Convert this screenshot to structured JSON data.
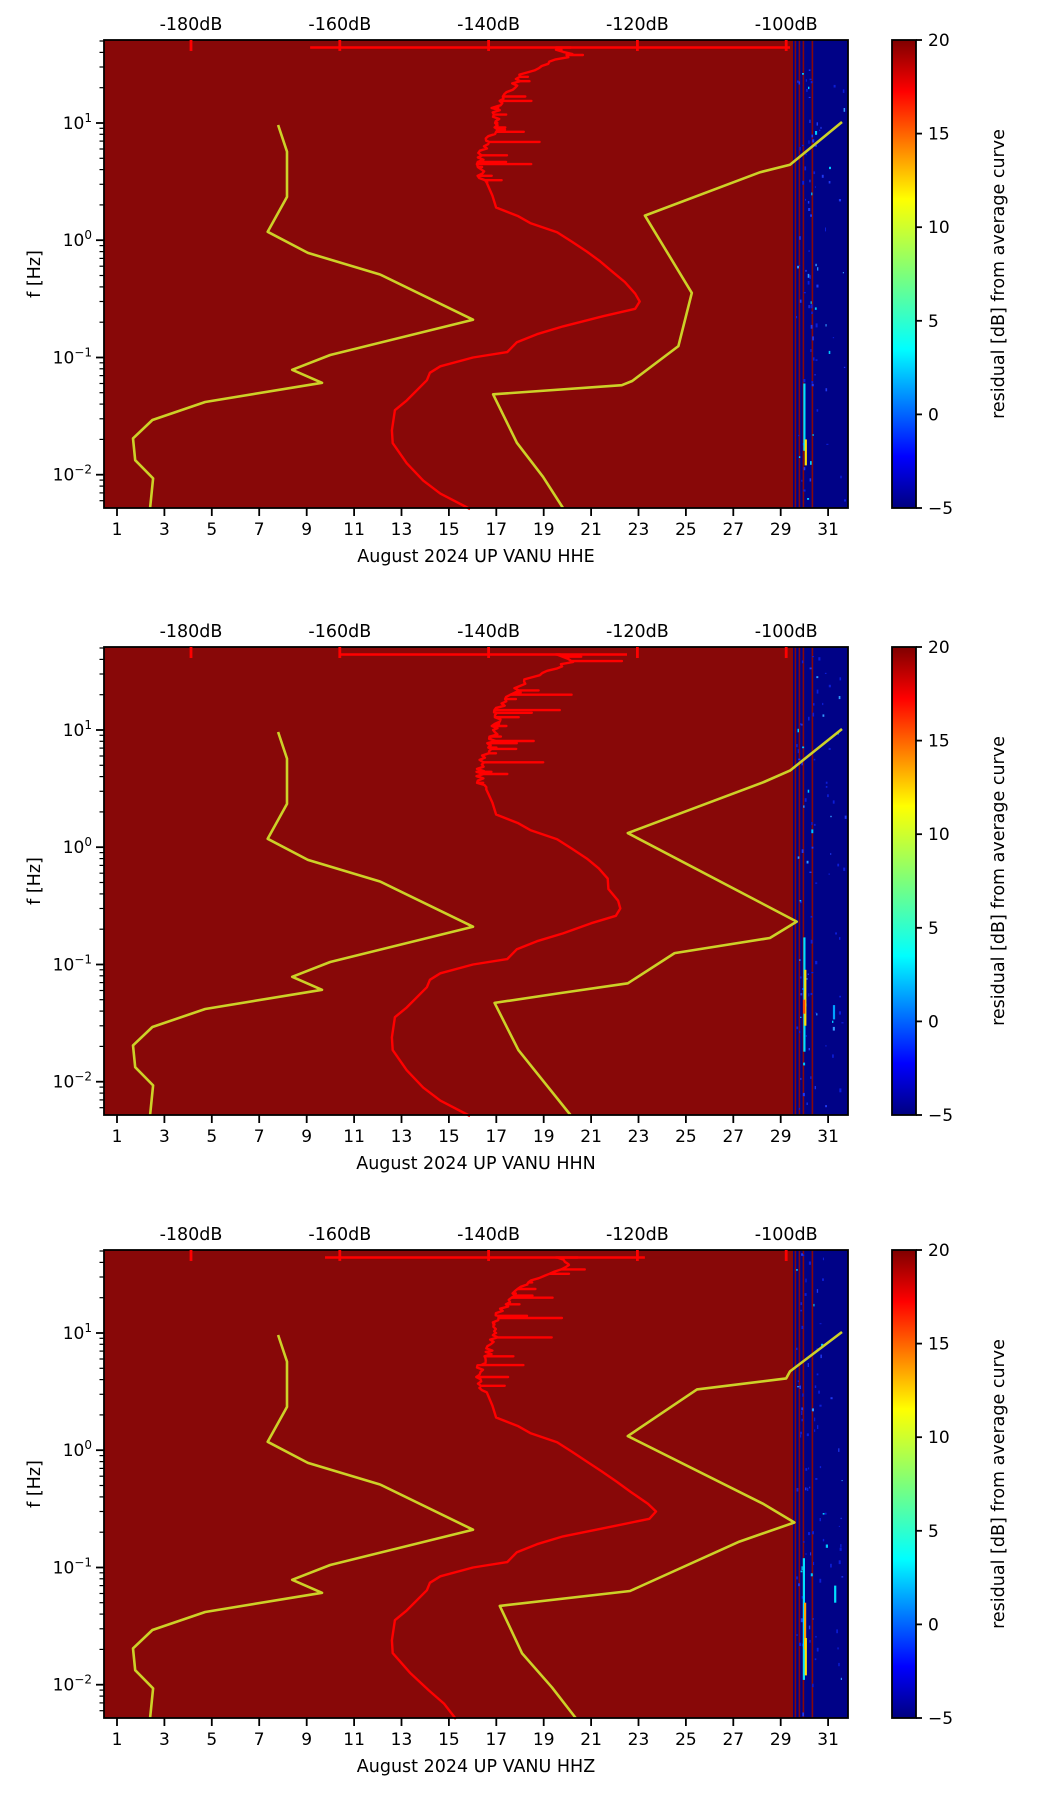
{
  "chart_data": {
    "type": "heatmap",
    "x_axis": {
      "range": [
        0.45,
        31.84
      ],
      "ticks": [
        1,
        3,
        5,
        7,
        9,
        11,
        13,
        15,
        17,
        19,
        21,
        23,
        25,
        27,
        29,
        31
      ]
    },
    "top_axis": {
      "range_db": [
        -191.7,
        -91.7
      ],
      "ticks_db": [
        -180,
        -160,
        -140,
        -120,
        -100
      ],
      "labels": [
        "-180dB",
        "-160dB",
        "-140dB",
        "-120dB",
        "-100dB"
      ],
      "color": "#ff0000"
    },
    "y_axis": {
      "label": "f [Hz]",
      "scale": "log",
      "range_hz": [
        0.0052,
        51
      ],
      "ticks": [
        {
          "f": 10,
          "exp": "1"
        },
        {
          "f": 1,
          "exp": "0"
        },
        {
          "f": 0.1,
          "exp": "−1"
        },
        {
          "f": 0.01,
          "exp": "−2"
        }
      ]
    },
    "colorbar": {
      "label": "residual [dB] from average curve",
      "range": [
        -5,
        20
      ],
      "ticks": [
        20,
        15,
        10,
        5,
        0,
        -5
      ],
      "tick_labels": [
        "20",
        "15",
        "10",
        "5",
        "0",
        "−5"
      ],
      "colormap": "jet",
      "gradient_stops": [
        {
          "pos": 0,
          "color": "#7f0000"
        },
        {
          "pos": 11,
          "color": "#ff0000"
        },
        {
          "pos": 34,
          "color": "#ffff00"
        },
        {
          "pos": 50,
          "color": "#7dff7a"
        },
        {
          "pos": 66,
          "color": "#00ffff"
        },
        {
          "pos": 89,
          "color": "#0000ff"
        },
        {
          "pos": 100,
          "color": "#00007f"
        }
      ]
    },
    "heatmap": {
      "background_value_db": 20,
      "background_color": "#880808",
      "band": {
        "start_day": 29.52,
        "value_db": -5,
        "color": "#000287",
        "red_stripe_days": [
          29.62,
          29.79,
          29.96,
          30.34
        ]
      }
    },
    "series": {
      "psd_color": "#ff0000",
      "noise_model_color": "#cdd128",
      "noise_model_low_points": [
        [
          -168.3,
          9.6
        ],
        [
          -167.1,
          5.7
        ],
        [
          -167.1,
          2.34
        ],
        [
          -169.7,
          1.18
        ],
        [
          -164.3,
          0.78
        ],
        [
          -154.6,
          0.51
        ],
        [
          -142.1,
          0.21
        ],
        [
          -161.3,
          0.105
        ],
        [
          -166.4,
          0.0785
        ],
        [
          -162.4,
          0.0608
        ],
        [
          -178.1,
          0.0417
        ],
        [
          -185.2,
          0.0293
        ],
        [
          -187.8,
          0.0204
        ],
        [
          -187.5,
          0.0133
        ],
        [
          -185.1,
          0.0093
        ],
        [
          -185.5,
          0.0052
        ]
      ]
    },
    "subplots": [
      {
        "xlabel": "August 2024 UP VANU  HHE",
        "channel": "HHE",
        "spike_seed": 7,
        "spike_max_db": 11,
        "top_streak": {
          "f": 44,
          "db": [
            -164,
            -99.5
          ]
        },
        "psd_points": [
          [
            -131,
            44
          ],
          [
            -129,
            38
          ],
          [
            -135,
            27
          ],
          [
            -137,
            20
          ],
          [
            -139,
            14
          ],
          [
            -139,
            10
          ],
          [
            -140,
            6.9
          ],
          [
            -141,
            5.3
          ],
          [
            -141.2,
            4.4
          ],
          [
            -140.8,
            3.0
          ],
          [
            -139.5,
            2.4
          ],
          [
            -139,
            1.9
          ],
          [
            -136,
            1.6
          ],
          [
            -134.4,
            1.4
          ],
          [
            -130.8,
            1.17
          ],
          [
            -128.8,
            0.97
          ],
          [
            -126.8,
            0.8
          ],
          [
            -125,
            0.66
          ],
          [
            -123.4,
            0.54
          ],
          [
            -121.7,
            0.44
          ],
          [
            -120.3,
            0.35
          ],
          [
            -119.7,
            0.3
          ],
          [
            -120.3,
            0.26
          ],
          [
            -124.6,
            0.225
          ],
          [
            -130,
            0.184
          ],
          [
            -133.5,
            0.158
          ],
          [
            -136.2,
            0.135
          ],
          [
            -137.5,
            0.111
          ],
          [
            -142.1,
            0.1
          ],
          [
            -146.5,
            0.084
          ],
          [
            -147.9,
            0.074
          ],
          [
            -148.3,
            0.064
          ],
          [
            -151,
            0.043
          ],
          [
            -152.6,
            0.0355
          ],
          [
            -153,
            0.0239
          ],
          [
            -152.9,
            0.0186
          ],
          [
            -151,
            0.0125
          ],
          [
            -148.8,
            0.0089
          ],
          [
            -146.5,
            0.0069
          ],
          [
            -142.5,
            0.0051
          ]
        ],
        "noise_model_high_points": [
          [
            -92.5,
            10.2
          ],
          [
            -99.5,
            4.4
          ],
          [
            -103.5,
            3.8
          ],
          [
            -119,
            1.62
          ],
          [
            -112.7,
            0.355
          ],
          [
            -114.5,
            0.125
          ],
          [
            -120.7,
            0.063
          ],
          [
            -122.1,
            0.058
          ],
          [
            -139.4,
            0.0485
          ],
          [
            -136.2,
            0.0187
          ],
          [
            -132.7,
            0.0096
          ],
          [
            -130,
            0.0052
          ]
        ],
        "band_streaks": [
          {
            "day": 30.0,
            "f_top": 0.06,
            "f_bot": 0.016,
            "color": "#00e0ff"
          },
          {
            "day": 30.06,
            "f_top": 0.02,
            "f_bot": 0.012,
            "color": "#ffe000"
          }
        ]
      },
      {
        "xlabel": "August 2024 UP VANU  HHN",
        "channel": "HHN",
        "spike_seed": 13,
        "spike_max_db": 14,
        "top_streak": {
          "f": 44,
          "db": [
            -160,
            -121.4
          ]
        },
        "psd_points": [
          [
            -131,
            44
          ],
          [
            -129,
            38
          ],
          [
            -135,
            27
          ],
          [
            -137,
            20
          ],
          [
            -139,
            14
          ],
          [
            -139,
            10
          ],
          [
            -140,
            6.9
          ],
          [
            -141,
            5.3
          ],
          [
            -141.2,
            4.4
          ],
          [
            -140.8,
            3.0
          ],
          [
            -139.5,
            2.4
          ],
          [
            -139,
            1.9
          ],
          [
            -136,
            1.6
          ],
          [
            -134.4,
            1.4
          ],
          [
            -130.8,
            1.17
          ],
          [
            -128.8,
            0.97
          ],
          [
            -126.8,
            0.8
          ],
          [
            -125.2,
            0.66
          ],
          [
            -124,
            0.54
          ],
          [
            -123.9,
            0.44
          ],
          [
            -122.6,
            0.35
          ],
          [
            -122.3,
            0.3
          ],
          [
            -122.9,
            0.26
          ],
          [
            -126.2,
            0.225
          ],
          [
            -130,
            0.184
          ],
          [
            -133.5,
            0.158
          ],
          [
            -136.2,
            0.135
          ],
          [
            -137.5,
            0.111
          ],
          [
            -142.1,
            0.1
          ],
          [
            -146.5,
            0.084
          ],
          [
            -147.9,
            0.074
          ],
          [
            -148.3,
            0.064
          ],
          [
            -151,
            0.043
          ],
          [
            -152.6,
            0.0355
          ],
          [
            -153,
            0.0239
          ],
          [
            -152.9,
            0.0186
          ],
          [
            -151,
            0.0125
          ],
          [
            -148.8,
            0.0089
          ],
          [
            -146.5,
            0.0069
          ],
          [
            -142.5,
            0.0051
          ]
        ],
        "noise_model_high_points": [
          [
            -92.5,
            10.2
          ],
          [
            -99.5,
            4.5
          ],
          [
            -103,
            3.6
          ],
          [
            -121.3,
            1.32
          ],
          [
            -98.6,
            0.232
          ],
          [
            -102.2,
            0.168
          ],
          [
            -115,
            0.125
          ],
          [
            -121.3,
            0.069
          ],
          [
            -130.4,
            0.057
          ],
          [
            -139.2,
            0.047
          ],
          [
            -136,
            0.0186
          ],
          [
            -132.3,
            0.0095
          ],
          [
            -129,
            0.0052
          ]
        ],
        "band_streaks": [
          {
            "day": 30.0,
            "f_top": 0.17,
            "f_bot": 0.018,
            "color": "#00e0ff"
          },
          {
            "day": 30.04,
            "f_top": 0.09,
            "f_bot": 0.03,
            "color": "#ffe000"
          },
          {
            "day": 29.99,
            "f_top": 0.05,
            "f_bot": 0.038,
            "color": "#ff4500"
          },
          {
            "day": 31.25,
            "f_top": 0.045,
            "f_bot": 0.034,
            "color": "#00a0ff"
          }
        ]
      },
      {
        "xlabel": "August 2024 UP VANU  HHZ",
        "channel": "HHZ",
        "spike_seed": 29,
        "spike_max_db": 13,
        "top_streak": {
          "f": 44,
          "db": [
            -162,
            -119
          ]
        },
        "psd_points": [
          [
            -131,
            44
          ],
          [
            -129,
            38
          ],
          [
            -135,
            27
          ],
          [
            -137,
            20
          ],
          [
            -139,
            14
          ],
          [
            -139,
            10
          ],
          [
            -140,
            6.9
          ],
          [
            -141,
            5.3
          ],
          [
            -141.2,
            4.4
          ],
          [
            -140.8,
            3.0
          ],
          [
            -139.5,
            2.4
          ],
          [
            -139,
            1.9
          ],
          [
            -136,
            1.6
          ],
          [
            -134.4,
            1.4
          ],
          [
            -130.8,
            1.17
          ],
          [
            -128.8,
            0.97
          ],
          [
            -126.8,
            0.8
          ],
          [
            -124.8,
            0.66
          ],
          [
            -122.8,
            0.54
          ],
          [
            -120.9,
            0.44
          ],
          [
            -118.6,
            0.35
          ],
          [
            -117.5,
            0.3
          ],
          [
            -118.4,
            0.26
          ],
          [
            -123.2,
            0.225
          ],
          [
            -130,
            0.184
          ],
          [
            -133.5,
            0.158
          ],
          [
            -136.2,
            0.135
          ],
          [
            -137.5,
            0.111
          ],
          [
            -142.1,
            0.1
          ],
          [
            -146.5,
            0.084
          ],
          [
            -147.9,
            0.074
          ],
          [
            -148.3,
            0.064
          ],
          [
            -151,
            0.043
          ],
          [
            -152.6,
            0.0355
          ],
          [
            -153,
            0.0239
          ],
          [
            -152.9,
            0.0186
          ],
          [
            -150.5,
            0.0125
          ],
          [
            -148,
            0.0089
          ],
          [
            -146,
            0.0069
          ],
          [
            -144.4,
            0.0051
          ]
        ],
        "noise_model_high_points": [
          [
            -92.5,
            10.2
          ],
          [
            -99.5,
            4.7
          ],
          [
            -100,
            4.1
          ],
          [
            -112,
            3.3
          ],
          [
            -121.3,
            1.32
          ],
          [
            -103.2,
            0.352
          ],
          [
            -98.9,
            0.242
          ],
          [
            -106.3,
            0.166
          ],
          [
            -121,
            0.063
          ],
          [
            -138.5,
            0.047
          ],
          [
            -135.5,
            0.0185
          ],
          [
            -131.5,
            0.0095
          ],
          [
            -128.3,
            0.0052
          ]
        ],
        "band_streaks": [
          {
            "day": 29.98,
            "f_top": 0.12,
            "f_bot": 0.011,
            "color": "#00e0ff"
          },
          {
            "day": 30.03,
            "f_top": 0.05,
            "f_bot": 0.02,
            "color": "#ffa500"
          },
          {
            "day": 30.06,
            "f_top": 0.025,
            "f_bot": 0.012,
            "color": "#ffe000"
          },
          {
            "day": 31.3,
            "f_top": 0.07,
            "f_bot": 0.05,
            "color": "#00e0ff"
          }
        ]
      }
    ]
  }
}
